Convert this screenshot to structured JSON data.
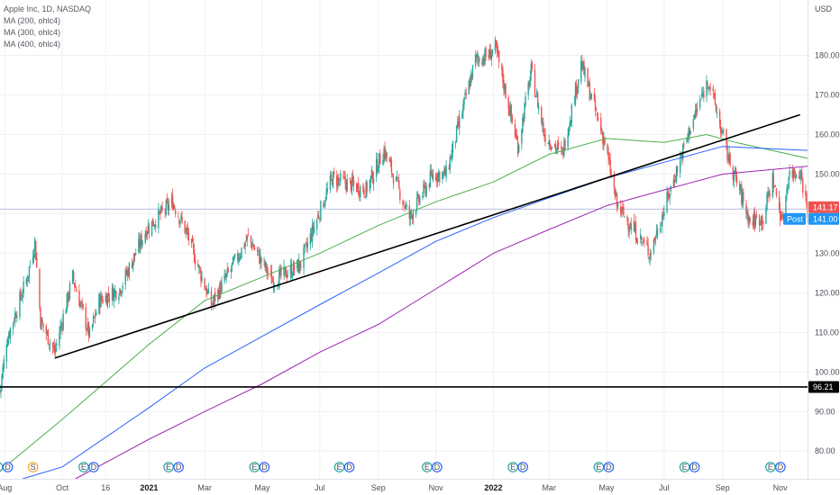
{
  "header": {
    "title": "Apple Inc, 1D, NASDAQ",
    "indicators": [
      "MA (200, ohlc4)",
      "MA (300, ohlc4)",
      "MA (400, ohlc4)"
    ]
  },
  "currency": "USD",
  "colors": {
    "up": "#26a69a",
    "down": "#ef5350",
    "ma200": "#4caf50",
    "ma300": "#2962ff",
    "ma400": "#9c27b0",
    "price_label": "#ef5350",
    "post_label": "#2196f3",
    "hline_label": "#000000",
    "event_earn": "#26a69a",
    "event_div": "#2962ff",
    "event_split": "#f5a623"
  },
  "price_labels": {
    "last": "141.17",
    "post_tag": "Post",
    "post": "141.00",
    "hline": "96.21"
  },
  "events": {
    "earnings_letter": "E",
    "dividend_letter": "D",
    "split_letter": "S"
  },
  "chart_data": {
    "type": "candlestick",
    "title": "Apple Inc, 1D, NASDAQ",
    "ylabel": "USD",
    "ylim": [
      73,
      194
    ],
    "y_ticks": [
      80.0,
      90.0,
      100.0,
      110.0,
      120.0,
      130.0,
      140.0,
      150.0,
      160.0,
      170.0,
      180.0
    ],
    "x_tick_labels": [
      "Aug",
      "Oct",
      "16",
      "2021",
      "Mar",
      "May",
      "Jul",
      "Sep",
      "Nov",
      "2022",
      "Mar",
      "May",
      "Jul",
      "Sep",
      "Nov"
    ],
    "x_range": [
      "2020-07-27",
      "2022-11-30"
    ],
    "x_ticks": [
      "2020-08-01",
      "2020-10-01",
      "2020-11-16",
      "2021-01-01",
      "2021-03-01",
      "2021-05-01",
      "2021-07-01",
      "2021-09-01",
      "2021-11-01",
      "2022-01-01",
      "2022-03-01",
      "2022-05-01",
      "2022-07-01",
      "2022-09-01",
      "2022-11-01"
    ],
    "price_anchors": [
      [
        "2020-07-27",
        95
      ],
      [
        "2020-08-03",
        108
      ],
      [
        "2020-08-25",
        124
      ],
      [
        "2020-09-02",
        133
      ],
      [
        "2020-09-08",
        113
      ],
      [
        "2020-09-23",
        105
      ],
      [
        "2020-10-12",
        124
      ],
      [
        "2020-10-30",
        109
      ],
      [
        "2020-11-09",
        118
      ],
      [
        "2020-12-01",
        121
      ],
      [
        "2020-12-29",
        136
      ],
      [
        "2021-01-26",
        143
      ],
      [
        "2021-02-10",
        135
      ],
      [
        "2021-03-08",
        117
      ],
      [
        "2021-04-16",
        134
      ],
      [
        "2021-05-12",
        123
      ],
      [
        "2021-06-10",
        127
      ],
      [
        "2021-07-14",
        149
      ],
      [
        "2021-08-19",
        146
      ],
      [
        "2021-09-07",
        156
      ],
      [
        "2021-10-04",
        139
      ],
      [
        "2021-10-29",
        150
      ],
      [
        "2021-11-12",
        150
      ],
      [
        "2021-12-13",
        179
      ],
      [
        "2021-12-27",
        180
      ],
      [
        "2022-01-03",
        182
      ],
      [
        "2022-01-27",
        157
      ],
      [
        "2022-02-10",
        176
      ],
      [
        "2022-02-24",
        160
      ],
      [
        "2022-03-15",
        155
      ],
      [
        "2022-04-04",
        178
      ],
      [
        "2022-04-29",
        158
      ],
      [
        "2022-05-12",
        142
      ],
      [
        "2022-06-16",
        130
      ],
      [
        "2022-07-29",
        162
      ],
      [
        "2022-08-17",
        174
      ],
      [
        "2022-09-06",
        155
      ],
      [
        "2022-09-30",
        138
      ],
      [
        "2022-10-14",
        139
      ],
      [
        "2022-10-24",
        149
      ],
      [
        "2022-11-03",
        138
      ],
      [
        "2022-11-10",
        150
      ],
      [
        "2022-11-22",
        151
      ],
      [
        "2022-11-30",
        141.17
      ]
    ],
    "series": [
      {
        "name": "MA (200, ohlc4)",
        "points": [
          [
            "2020-07-27",
            75
          ],
          [
            "2020-10-01",
            88
          ],
          [
            "2021-01-01",
            107
          ],
          [
            "2021-03-01",
            118
          ],
          [
            "2021-05-01",
            124
          ],
          [
            "2021-07-01",
            130
          ],
          [
            "2021-09-01",
            137
          ],
          [
            "2021-11-01",
            143
          ],
          [
            "2022-01-01",
            148
          ],
          [
            "2022-03-01",
            155
          ],
          [
            "2022-05-01",
            159
          ],
          [
            "2022-07-01",
            158
          ],
          [
            "2022-08-15",
            160
          ],
          [
            "2022-09-15",
            158
          ],
          [
            "2022-11-30",
            154
          ]
        ]
      },
      {
        "name": "MA (300, ohlc4)",
        "points": [
          [
            "2020-08-20",
            73
          ],
          [
            "2020-10-01",
            76
          ],
          [
            "2021-01-01",
            91
          ],
          [
            "2021-03-01",
            101
          ],
          [
            "2021-05-01",
            109
          ],
          [
            "2021-07-01",
            117
          ],
          [
            "2021-09-01",
            125
          ],
          [
            "2021-11-01",
            133
          ],
          [
            "2022-01-01",
            139
          ],
          [
            "2022-03-01",
            144
          ],
          [
            "2022-05-01",
            149
          ],
          [
            "2022-07-01",
            153
          ],
          [
            "2022-09-01",
            157
          ],
          [
            "2022-11-30",
            156
          ]
        ]
      },
      {
        "name": "MA (400, ohlc4)",
        "points": [
          [
            "2020-10-15",
            73
          ],
          [
            "2021-01-01",
            83
          ],
          [
            "2021-03-01",
            90
          ],
          [
            "2021-05-01",
            97
          ],
          [
            "2021-07-01",
            105
          ],
          [
            "2021-09-01",
            112
          ],
          [
            "2021-11-01",
            121
          ],
          [
            "2022-01-01",
            130
          ],
          [
            "2022-03-01",
            136
          ],
          [
            "2022-05-01",
            142
          ],
          [
            "2022-07-01",
            146
          ],
          [
            "2022-09-01",
            150
          ],
          [
            "2022-11-30",
            152
          ]
        ]
      }
    ],
    "trendlines": [
      {
        "from": [
          "2020-09-23",
          103.5
        ],
        "to": [
          "2022-11-22",
          165
        ]
      },
      {
        "price": 96.21
      }
    ],
    "reference_lines": [
      {
        "price": 141.17
      }
    ],
    "events": [
      {
        "date": "2020-07-30",
        "kinds": [
          "E",
          "D"
        ]
      },
      {
        "date": "2020-08-31",
        "kinds": [
          "S"
        ]
      },
      {
        "date": "2020-10-29",
        "kinds": [
          "E",
          "D"
        ]
      },
      {
        "date": "2021-01-27",
        "kinds": [
          "E",
          "D"
        ]
      },
      {
        "date": "2021-04-28",
        "kinds": [
          "E",
          "D"
        ]
      },
      {
        "date": "2021-07-27",
        "kinds": [
          "E",
          "D"
        ]
      },
      {
        "date": "2021-10-28",
        "kinds": [
          "E",
          "D"
        ]
      },
      {
        "date": "2022-01-27",
        "kinds": [
          "E",
          "D"
        ]
      },
      {
        "date": "2022-04-28",
        "kinds": [
          "E",
          "D"
        ]
      },
      {
        "date": "2022-07-28",
        "kinds": [
          "E",
          "D"
        ]
      },
      {
        "date": "2022-10-27",
        "kinds": [
          "E",
          "D"
        ]
      }
    ]
  }
}
